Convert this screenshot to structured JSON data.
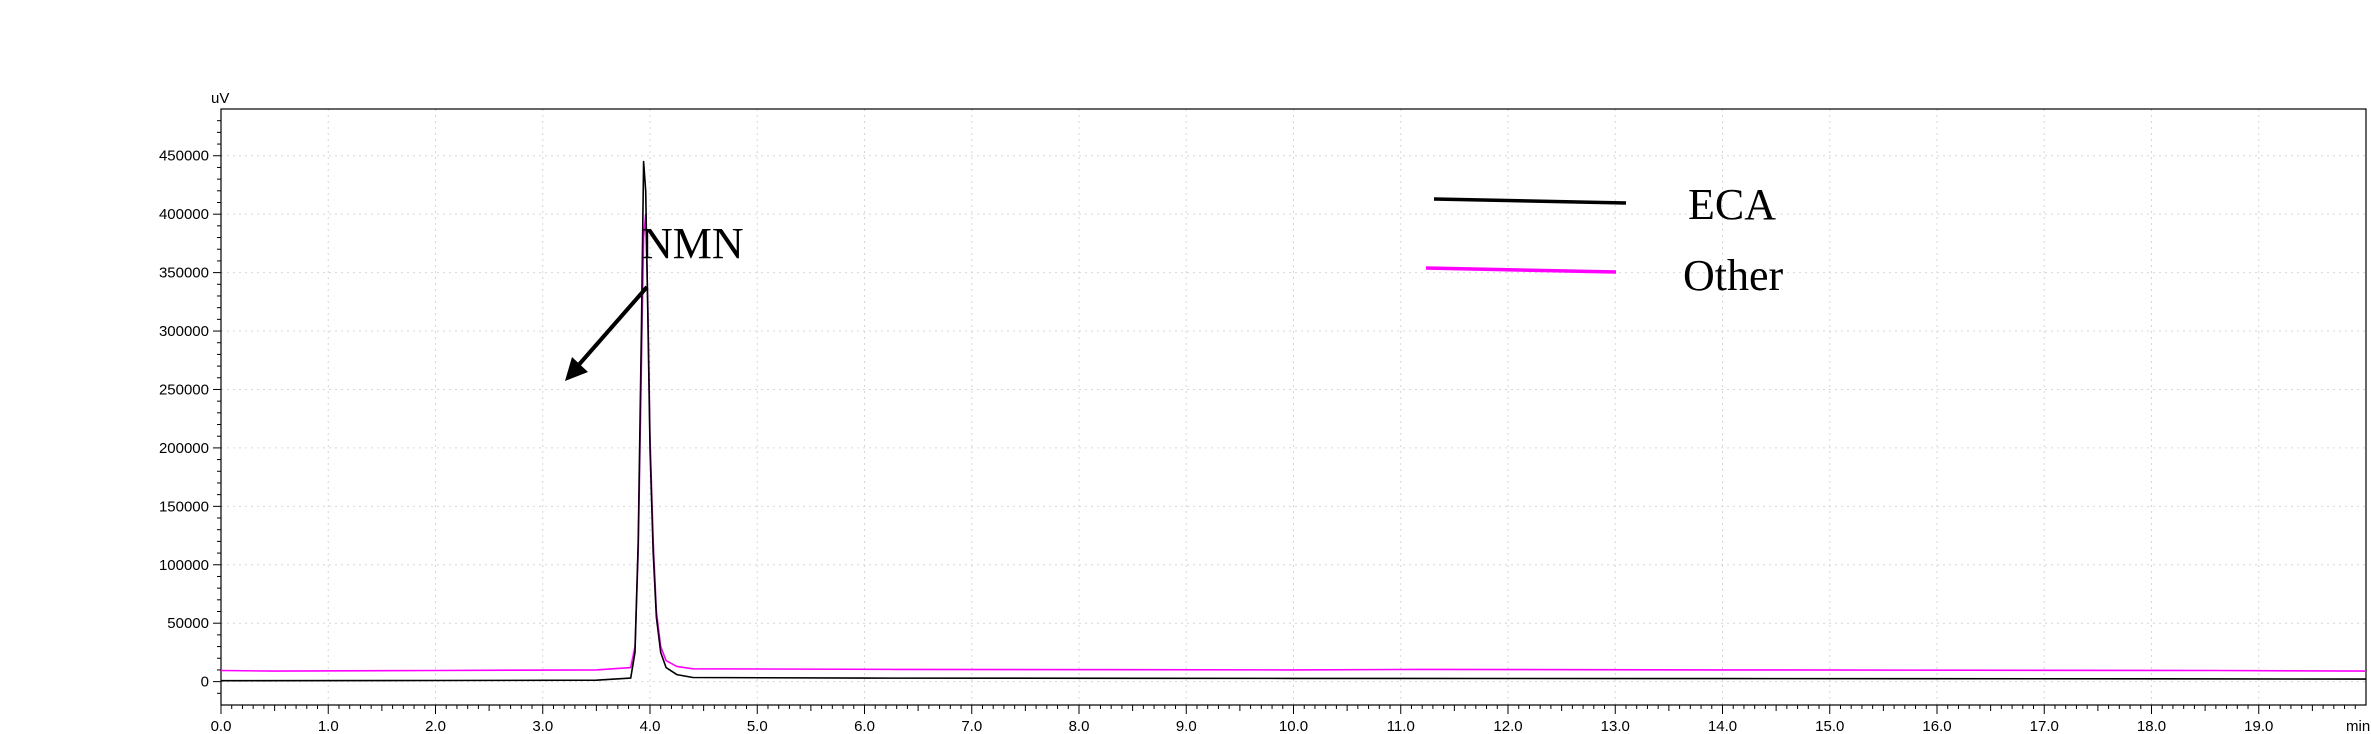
{
  "chart_data": {
    "type": "line",
    "title": "",
    "xlabel": "",
    "ylabel": "",
    "x_unit": "min",
    "y_unit": "uV",
    "xlim": [
      0,
      20
    ],
    "ylim": [
      -20000,
      490000
    ],
    "x_ticks": [
      0.0,
      1.0,
      2.0,
      3.0,
      4.0,
      5.0,
      6.0,
      7.0,
      8.0,
      9.0,
      10.0,
      11.0,
      12.0,
      13.0,
      14.0,
      15.0,
      16.0,
      17.0,
      18.0,
      19.0
    ],
    "x_tick_labels": [
      "0.0",
      "1.0",
      "2.0",
      "3.0",
      "4.0",
      "5.0",
      "6.0",
      "7.0",
      "8.0",
      "9.0",
      "10.0",
      "11.0",
      "12.0",
      "13.0",
      "14.0",
      "15.0",
      "16.0",
      "17.0",
      "18.0",
      "19.0"
    ],
    "y_ticks": [
      0,
      50000,
      100000,
      150000,
      200000,
      250000,
      300000,
      350000,
      400000,
      450000
    ],
    "y_tick_labels": [
      "0",
      "50000",
      "100000",
      "150000",
      "200000",
      "250000",
      "300000",
      "350000",
      "400000",
      "450000"
    ],
    "grid": true,
    "legend_position": "top-right",
    "series": [
      {
        "name": "ECA",
        "color": "#000000",
        "x": [
          0.0,
          2.0,
          3.5,
          3.82,
          3.86,
          3.89,
          3.92,
          3.94,
          3.96,
          3.98,
          4.0,
          4.03,
          4.06,
          4.1,
          4.15,
          4.25,
          4.4,
          6.0,
          10.0,
          14.0,
          18.0,
          20.0
        ],
        "y": [
          800,
          1000,
          1200,
          3000,
          25000,
          120000,
          300000,
          445000,
          420000,
          310000,
          200000,
          110000,
          55000,
          25000,
          12000,
          6000,
          3500,
          3000,
          2800,
          2600,
          2400,
          2200
        ]
      },
      {
        "name": "Other",
        "color": "#ff00ff",
        "x": [
          0.0,
          0.5,
          2.0,
          3.5,
          3.82,
          3.86,
          3.89,
          3.92,
          3.94,
          3.96,
          3.98,
          4.0,
          4.03,
          4.06,
          4.1,
          4.15,
          4.25,
          4.4,
          6.3,
          10.0,
          11.2,
          14.0,
          18.6,
          20.0
        ],
        "y": [
          9500,
          9000,
          9500,
          10000,
          12000,
          30000,
          110000,
          270000,
          380000,
          400000,
          320000,
          210000,
          120000,
          60000,
          30000,
          18000,
          13000,
          11000,
          10500,
          10000,
          10500,
          10000,
          9500,
          9000
        ]
      }
    ],
    "annotations": [
      {
        "text": "NMN",
        "arrow": true
      }
    ]
  }
}
